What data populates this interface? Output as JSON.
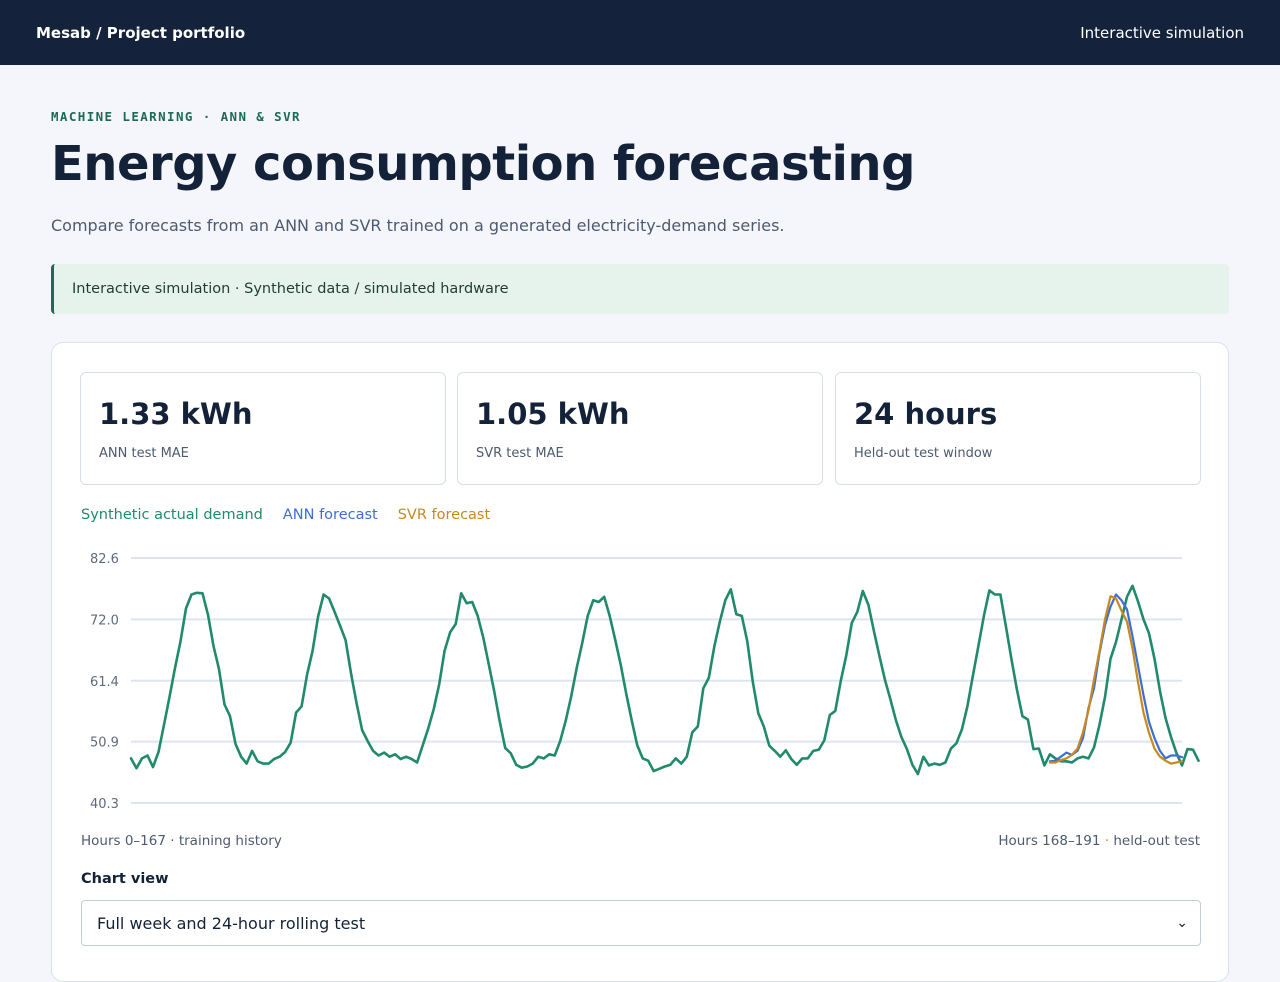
{
  "header": {
    "brand": "Mesab / Project portfolio",
    "nav_link": "Interactive simulation"
  },
  "page": {
    "eyebrow": "MACHINE LEARNING · ANN & SVR",
    "title": "Energy consumption forecasting",
    "subtitle": "Compare forecasts from an ANN and SVR trained on a generated electricity-demand series.",
    "banner": "Interactive simulation · Synthetic data / simulated hardware"
  },
  "stats": [
    {
      "value": "1.33 kWh",
      "label": "ANN test MAE"
    },
    {
      "value": "1.05 kWh",
      "label": "SVR test MAE"
    },
    {
      "value": "24 hours",
      "label": "Held-out test window"
    }
  ],
  "legend": [
    {
      "label": "Synthetic actual demand",
      "color": "#218a6c"
    },
    {
      "label": "ANN forecast",
      "color": "#3e6fd0"
    },
    {
      "label": "SVR forecast",
      "color": "#c8891f"
    }
  ],
  "chart_footer": {
    "left": "Hours 0–167 · training history",
    "right_a": "Hours 168–191",
    "right_sep": " · ",
    "right_b": "held-out test"
  },
  "controls": {
    "view_label": "Chart view",
    "selected_view": "Full week and 24-hour rolling test"
  },
  "chart_data": {
    "type": "line",
    "ylim": [
      40.3,
      82.6
    ],
    "yticks": [
      "82.6",
      "72.0",
      "61.4",
      "50.9",
      "40.3"
    ],
    "ytick_values": [
      82.6,
      72.0,
      61.4,
      50.9,
      40.3
    ],
    "x_range": [
      0,
      191
    ],
    "grid": true,
    "series": [
      {
        "name": "Synthetic actual demand",
        "color": "#218a6c",
        "x_start": 0,
        "values": [
          48.0,
          46.3,
          48.0,
          48.5,
          46.5,
          49.1,
          53.8,
          58.6,
          63.6,
          68.2,
          73.9,
          76.3,
          76.6,
          76.5,
          72.8,
          67.4,
          63.4,
          57.3,
          55.3,
          50.5,
          48.3,
          47.1,
          49.3,
          47.5,
          47.1,
          47.1,
          47.9,
          48.3,
          49.1,
          50.7,
          55.9,
          57.0,
          62.5,
          66.6,
          72.5,
          76.3,
          75.6,
          73.3,
          70.9,
          68.4,
          62.6,
          57.5,
          52.9,
          51.0,
          49.3,
          48.5,
          49.0,
          48.3,
          48.7,
          47.9,
          48.3,
          47.9,
          47.3,
          50.2,
          53.1,
          56.4,
          60.7,
          66.6,
          69.8,
          71.2,
          76.5,
          74.8,
          75.0,
          72.6,
          68.9,
          64.3,
          59.6,
          54.4,
          49.8,
          48.9,
          46.9,
          46.4,
          46.6,
          47.1,
          48.3,
          48.0,
          48.7,
          48.5,
          51.0,
          54.5,
          58.7,
          63.6,
          67.9,
          72.6,
          75.3,
          75.0,
          75.9,
          72.6,
          68.5,
          64.2,
          59.2,
          54.6,
          50.3,
          48.0,
          47.6,
          45.8,
          46.2,
          46.6,
          46.9,
          48.0,
          47.1,
          48.3,
          52.5,
          53.5,
          60.1,
          61.9,
          67.3,
          71.6,
          75.3,
          77.2,
          72.9,
          72.6,
          68.2,
          61.2,
          55.8,
          53.5,
          50.2,
          49.3,
          48.3,
          49.4,
          47.9,
          46.9,
          48.0,
          48.0,
          49.3,
          49.5,
          51.1,
          55.5,
          56.2,
          61.4,
          65.8,
          71.4,
          73.3,
          76.9,
          74.5,
          70.0,
          65.7,
          61.6,
          58.2,
          54.6,
          51.7,
          49.6,
          46.9,
          45.3,
          48.3,
          46.8,
          47.1,
          46.9,
          47.3,
          49.7,
          50.6,
          53.0,
          57.0,
          62.3,
          67.4,
          72.6,
          77.0,
          76.3,
          76.3,
          70.8,
          65.2,
          59.9,
          55.3,
          54.7,
          49.6,
          49.7,
          46.8,
          48.7,
          48.0,
          47.5,
          47.5,
          47.3,
          48.0,
          48.3,
          48.0,
          49.9,
          53.8,
          58.6,
          65.2,
          68.1,
          72.0,
          75.9,
          77.8,
          75.1,
          72.0,
          69.6,
          65.2,
          59.6,
          55.0,
          51.7,
          48.9,
          46.8,
          49.6,
          49.5,
          47.6
        ]
      },
      {
        "name": "ANN forecast",
        "color": "#3e6fd0",
        "x_start": 167,
        "values": [
          47.5,
          47.6,
          48.3,
          49.0,
          48.6,
          49.3,
          51.5,
          56.7,
          60.1,
          66.2,
          71.0,
          74.2,
          76.3,
          75.3,
          73.7,
          69.1,
          64.0,
          58.9,
          54.3,
          51.5,
          49.3,
          48.0,
          48.5,
          48.5,
          48.2
        ]
      },
      {
        "name": "SVR forecast",
        "color": "#c8891f",
        "x_start": 167,
        "values": [
          47.3,
          47.3,
          47.7,
          48.0,
          48.6,
          49.7,
          52.5,
          56.3,
          61.6,
          66.6,
          72.0,
          76.0,
          75.6,
          73.5,
          71.6,
          67.0,
          61.2,
          55.9,
          52.4,
          49.7,
          48.3,
          47.6,
          47.1,
          47.3,
          47.5
        ]
      }
    ]
  }
}
